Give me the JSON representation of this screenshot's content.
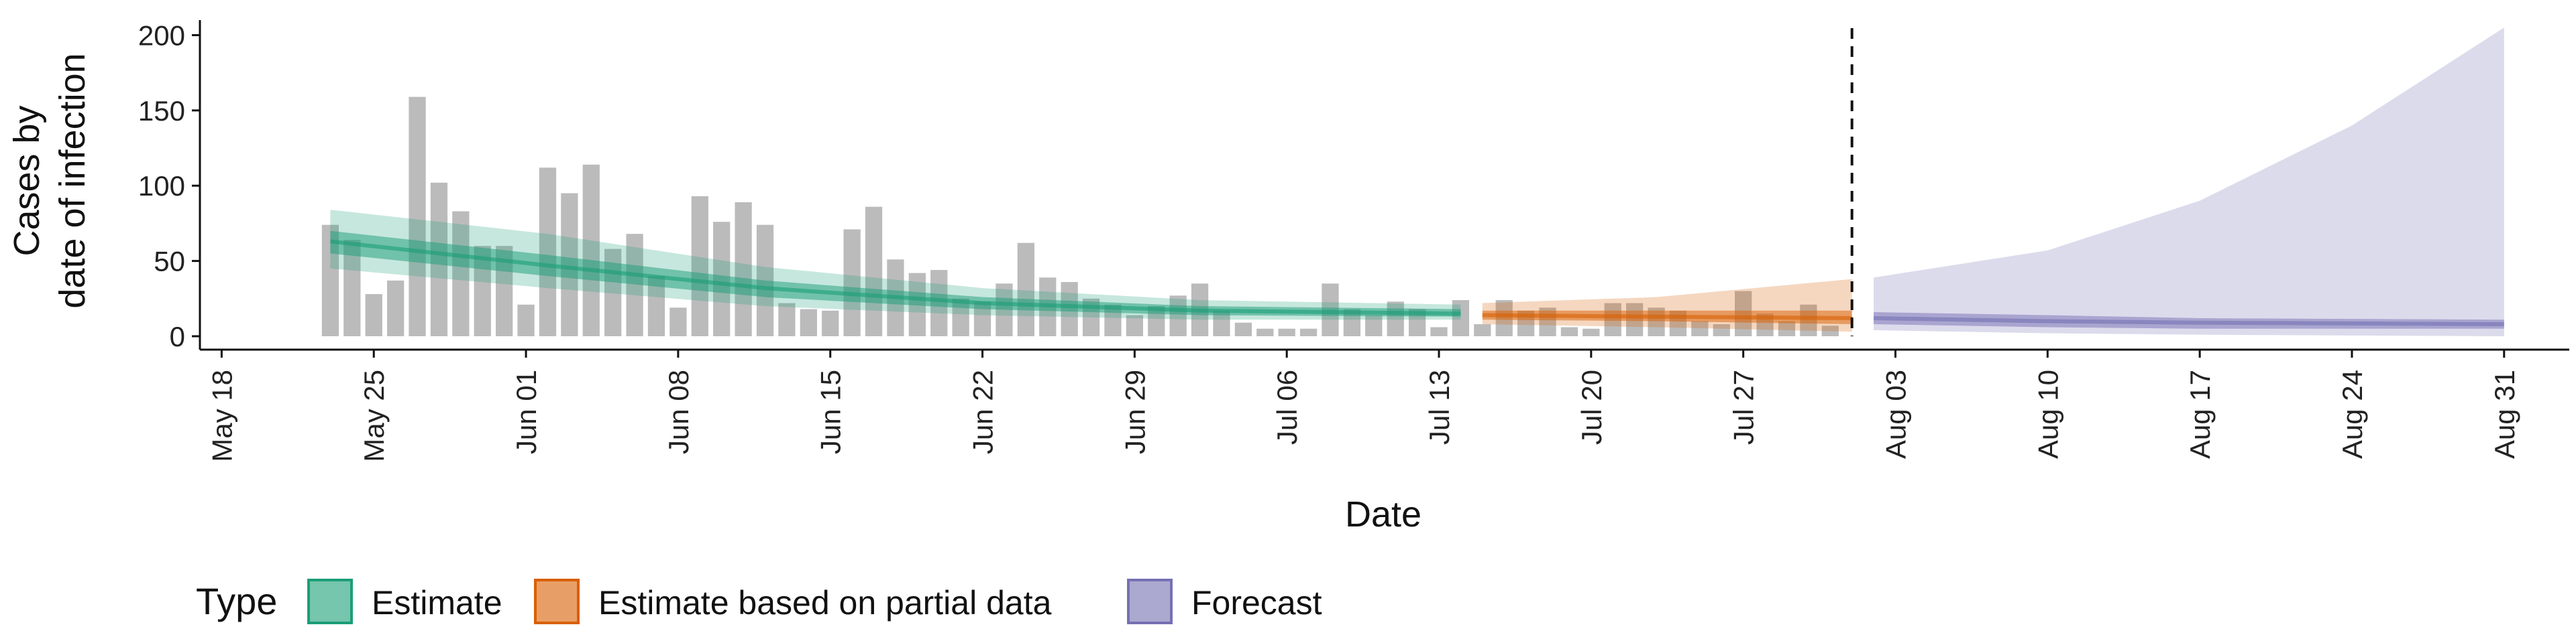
{
  "chart_data": {
    "type": "bar",
    "title": "",
    "xlabel": "Date",
    "ylabel_lines": [
      "Cases by",
      "date of infection"
    ],
    "ylim": [
      0,
      210
    ],
    "yticks": [
      0,
      50,
      100,
      150,
      200
    ],
    "x_range": [
      "2020-05-17",
      "2020-09-03"
    ],
    "xticks": [
      {
        "date": "2020-05-18",
        "label": "May 18"
      },
      {
        "date": "2020-05-25",
        "label": "May 25"
      },
      {
        "date": "2020-06-01",
        "label": "Jun 01"
      },
      {
        "date": "2020-06-08",
        "label": "Jun 08"
      },
      {
        "date": "2020-06-15",
        "label": "Jun 15"
      },
      {
        "date": "2020-06-22",
        "label": "Jun 22"
      },
      {
        "date": "2020-06-29",
        "label": "Jun 29"
      },
      {
        "date": "2020-07-06",
        "label": "Jul 06"
      },
      {
        "date": "2020-07-13",
        "label": "Jul 13"
      },
      {
        "date": "2020-07-20",
        "label": "Jul 20"
      },
      {
        "date": "2020-07-27",
        "label": "Jul 27"
      },
      {
        "date": "2020-08-03",
        "label": "Aug 03"
      },
      {
        "date": "2020-08-10",
        "label": "Aug 10"
      },
      {
        "date": "2020-08-17",
        "label": "Aug 17"
      },
      {
        "date": "2020-08-24",
        "label": "Aug 24"
      },
      {
        "date": "2020-08-31",
        "label": "Aug 31"
      }
    ],
    "forecast_start_date": "2020-08-01",
    "reported_cases": {
      "start_date": "2020-05-23",
      "values": [
        74,
        64,
        28,
        37,
        159,
        102,
        83,
        60,
        60,
        21,
        112,
        95,
        114,
        58,
        68,
        40,
        19,
        93,
        76,
        89,
        74,
        22,
        18,
        17,
        71,
        86,
        51,
        42,
        44,
        25,
        23,
        35,
        62,
        39,
        36,
        25,
        21,
        14,
        20,
        27,
        35,
        17,
        9,
        5,
        5,
        5,
        35,
        18,
        14,
        23,
        18,
        6,
        24,
        8,
        24,
        17,
        19,
        6,
        5,
        22,
        22,
        19,
        17,
        10,
        8,
        30,
        15,
        10,
        21,
        7
      ]
    },
    "legend_title": "Type",
    "legend_placement": "bottom",
    "series": [
      {
        "name": "Estimate",
        "color": "#1b9e77",
        "start_date": "2020-05-23",
        "end_date": "2020-07-14",
        "median_anchors": [
          [
            0,
            63
          ],
          [
            10,
            47
          ],
          [
            20,
            32
          ],
          [
            30,
            22
          ],
          [
            40,
            17
          ],
          [
            52,
            15
          ]
        ],
        "inner_band": {
          "lower": [
            [
              0,
              55
            ],
            [
              10,
              40
            ],
            [
              20,
              26
            ],
            [
              30,
              18
            ],
            [
              40,
              14
            ],
            [
              52,
              13
            ]
          ],
          "upper": [
            [
              0,
              70
            ],
            [
              10,
              54
            ],
            [
              20,
              37
            ],
            [
              30,
              26
            ],
            [
              40,
              20
            ],
            [
              52,
              18
            ]
          ]
        },
        "outer_band": {
          "lower": [
            [
              0,
              45
            ],
            [
              10,
              32
            ],
            [
              20,
              20
            ],
            [
              30,
              14
            ],
            [
              40,
              11
            ],
            [
              52,
              11
            ]
          ],
          "upper": [
            [
              0,
              84
            ],
            [
              10,
              68
            ],
            [
              20,
              46
            ],
            [
              30,
              32
            ],
            [
              40,
              24
            ],
            [
              52,
              21
            ]
          ]
        }
      },
      {
        "name": "Estimate based on partial data",
        "color": "#d95f02",
        "start_date": "2020-07-15",
        "end_date": "2020-08-01",
        "median_anchors": [
          [
            0,
            14
          ],
          [
            8,
            13
          ],
          [
            17,
            12
          ]
        ],
        "inner_band": {
          "lower": [
            [
              0,
              11
            ],
            [
              8,
              10
            ],
            [
              17,
              8
            ]
          ],
          "upper": [
            [
              0,
              17
            ],
            [
              8,
              17
            ],
            [
              17,
              17
            ]
          ]
        },
        "outer_band": {
          "lower": [
            [
              0,
              8
            ],
            [
              8,
              6
            ],
            [
              17,
              3
            ]
          ],
          "upper": [
            [
              0,
              22
            ],
            [
              8,
              26
            ],
            [
              17,
              38
            ]
          ]
        }
      },
      {
        "name": "Forecast",
        "color": "#7570b3",
        "start_date": "2020-08-02",
        "end_date": "2020-08-31",
        "median_anchors": [
          [
            0,
            12
          ],
          [
            8,
            10
          ],
          [
            15,
            9
          ],
          [
            29,
            8
          ]
        ],
        "inner_band": {
          "lower": [
            [
              0,
              8
            ],
            [
              8,
              6
            ],
            [
              15,
              5
            ],
            [
              29,
              5
            ]
          ],
          "upper": [
            [
              0,
              16
            ],
            [
              8,
              14
            ],
            [
              15,
              12
            ],
            [
              29,
              11
            ]
          ]
        },
        "outer_band": {
          "lower": [
            [
              0,
              4
            ],
            [
              8,
              2
            ],
            [
              15,
              1
            ],
            [
              29,
              0
            ]
          ],
          "upper": [
            [
              0,
              39
            ],
            [
              8,
              57
            ],
            [
              15,
              90
            ],
            [
              22,
              140
            ],
            [
              29,
              205
            ]
          ]
        }
      }
    ]
  }
}
